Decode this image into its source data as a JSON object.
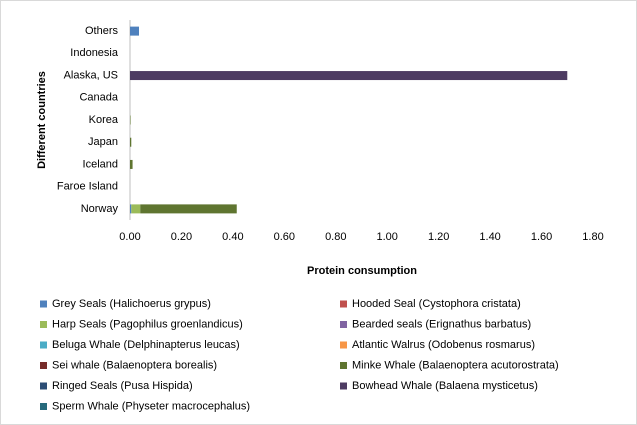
{
  "chart_data": {
    "type": "stacked-bar-horizontal",
    "ylabel": "Different countries",
    "xlabel": "Protein consumption",
    "categories": [
      "Norway",
      "Faroe Island",
      "Iceland",
      "Japan",
      "Korea",
      "Canada",
      "Alaska, US",
      "Indonesia",
      "Others"
    ],
    "series": [
      {
        "name": "Grey Seals (Halichoerus grypus)",
        "color": "#4f81bd",
        "values": [
          0.005,
          0,
          0,
          0,
          0,
          0,
          0,
          0,
          0.035
        ]
      },
      {
        "name": "Hooded Seal (Cystophora cristata)",
        "color": "#c0504d",
        "values": [
          0,
          0,
          0,
          0,
          0,
          0,
          0,
          0,
          0
        ]
      },
      {
        "name": "Harp Seals (Pagophilus groenlandicus)",
        "color": "#9bbb59",
        "values": [
          0.035,
          0,
          0,
          0,
          0,
          0,
          0,
          0,
          0
        ]
      },
      {
        "name": "Bearded seals (Erignathus barbatus)",
        "color": "#8064a2",
        "values": [
          0,
          0,
          0,
          0,
          0,
          0,
          0,
          0,
          0
        ]
      },
      {
        "name": "Beluga Whale (Delphinapterus leucas)",
        "color": "#4bacc6",
        "values": [
          0,
          0,
          0,
          0,
          0,
          0,
          0,
          0,
          0
        ]
      },
      {
        "name": "Atlantic Walrus (Odobenus rosmarus)",
        "color": "#f79646",
        "values": [
          0,
          0,
          0,
          0,
          0,
          0,
          0,
          0,
          0
        ]
      },
      {
        "name": "Sei whale (Balaenoptera borealis)",
        "color": "#772c2a",
        "values": [
          0,
          0,
          0,
          0,
          0,
          0,
          0,
          0,
          0
        ]
      },
      {
        "name": "Minke Whale (Balaenoptera acutorostrata)",
        "color": "#5f7530",
        "values": [
          0.375,
          0,
          0.01,
          0.005,
          0.002,
          0,
          0,
          0,
          0
        ]
      },
      {
        "name": "Ringed Seals (Pusa Hispida)",
        "color": "#2c4d75",
        "values": [
          0,
          0,
          0,
          0,
          0,
          0,
          0,
          0,
          0
        ]
      },
      {
        "name": "Bowhead Whale (Balaena mysticetus)",
        "color": "#4d3b62",
        "values": [
          0,
          0,
          0,
          0,
          0,
          0,
          1.7,
          0,
          0
        ]
      },
      {
        "name": "Sperm Whale (Physeter macrocephalus)",
        "color": "#276a7c",
        "values": [
          0,
          0,
          0,
          0,
          0,
          0,
          0,
          0,
          0
        ]
      }
    ],
    "xlim": [
      0,
      1.8
    ],
    "xticks": [
      {
        "value": 0,
        "label": "0.00"
      },
      {
        "value": 0.2,
        "label": "0.20"
      },
      {
        "value": 0.4,
        "label": "0.40"
      },
      {
        "value": 0.6,
        "label": "0.60"
      },
      {
        "value": 0.8,
        "label": "0.80"
      },
      {
        "value": 1.0,
        "label": "1.00"
      },
      {
        "value": 1.2,
        "label": "1.20"
      },
      {
        "value": 1.4,
        "label": "1.40"
      },
      {
        "value": 1.6,
        "label": "1.60"
      },
      {
        "value": 1.8,
        "label": "1.80"
      }
    ]
  }
}
